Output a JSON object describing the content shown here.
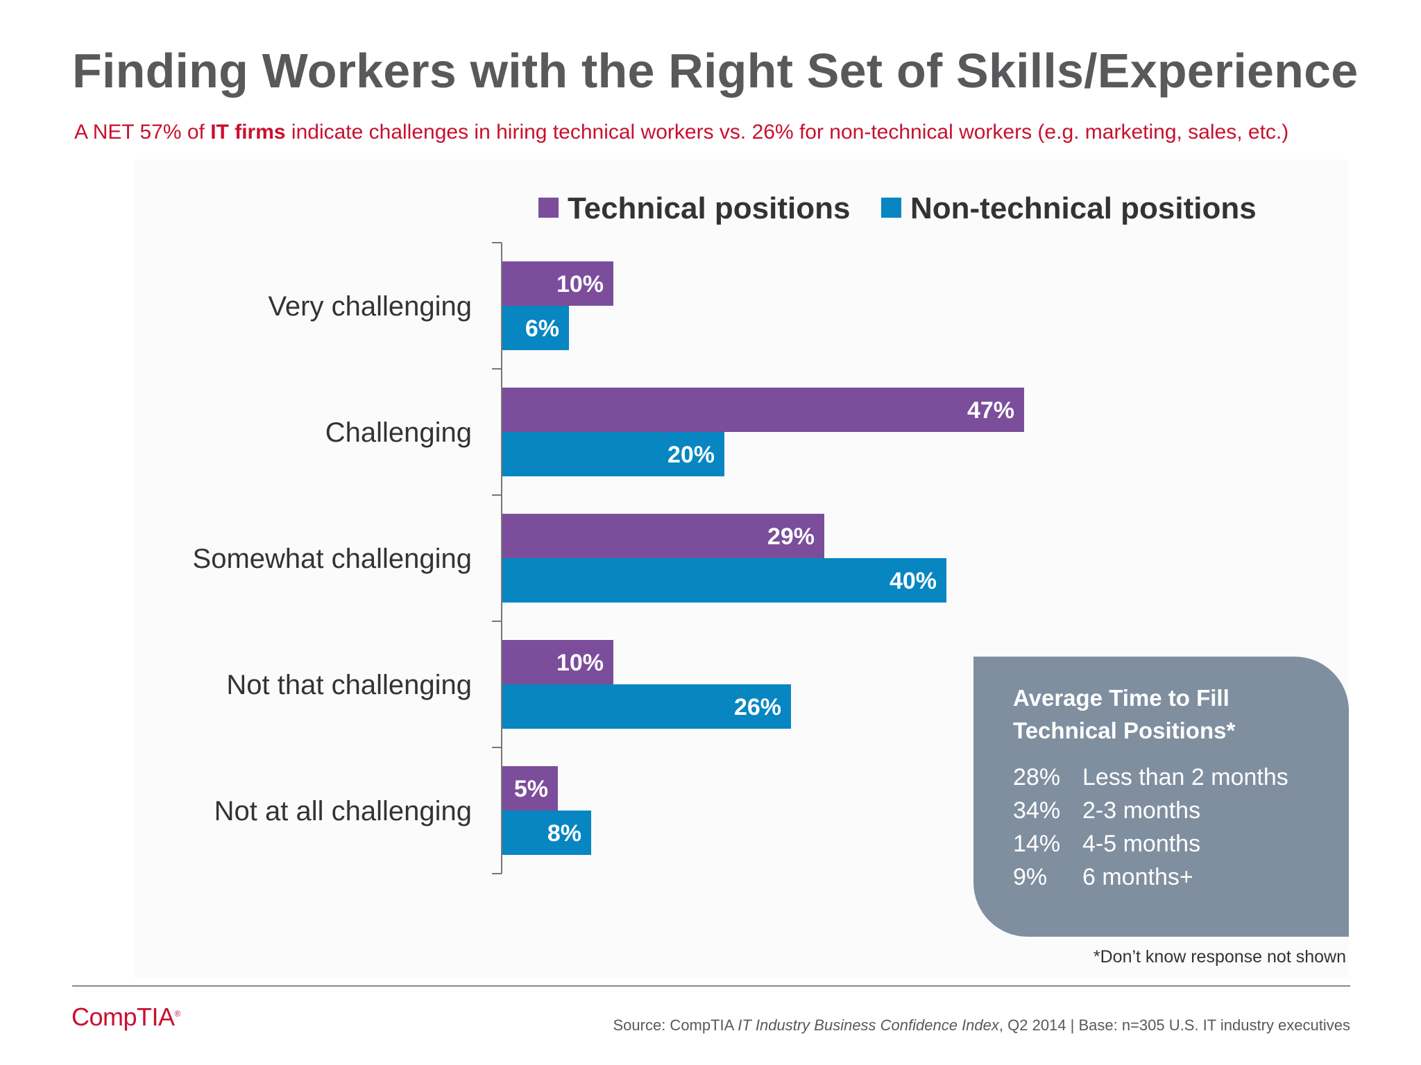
{
  "header": {
    "title": "Finding Workers with the Right Set of Skills/Experience",
    "subtitle_pre": "A NET 57% of ",
    "subtitle_bold": "IT firms",
    "subtitle_post": " indicate challenges in hiring technical workers vs. 26% for non-technical workers (e.g. marketing, sales, etc.)"
  },
  "chart_data": {
    "type": "bar",
    "orientation": "horizontal",
    "categories": [
      "Very challenging",
      "Challenging",
      "Somewhat challenging",
      "Not that challenging",
      "Not at all challenging"
    ],
    "series": [
      {
        "name": "Technical positions",
        "values": [
          10,
          47,
          29,
          10,
          5
        ],
        "labels": [
          "10%",
          "47%",
          "29%",
          "10%",
          "5%"
        ]
      },
      {
        "name": "Non-technical positions",
        "values": [
          6,
          20,
          40,
          26,
          8
        ],
        "labels": [
          "6%",
          "20%",
          "40%",
          "26%",
          "8%"
        ]
      }
    ],
    "colors": {
      "Technical positions": "#7b4d9b",
      "Non-technical positions": "#0786c1"
    },
    "legend_position": "top",
    "grid": false,
    "value_unit": "%"
  },
  "callout": {
    "title_line1": "Average Time to Fill",
    "title_line2": "Technical Positions*",
    "rows": [
      {
        "pct": "28%",
        "label": "Less than 2 months"
      },
      {
        "pct": "34%",
        "label": "2-3 months"
      },
      {
        "pct": "14%",
        "label": "4-5 months"
      },
      {
        "pct": "9%",
        "label": "6 months+"
      }
    ]
  },
  "footnote": "*Don’t know response not shown",
  "footer": {
    "logo": "CompTIA",
    "source_pre": "Source: CompTIA ",
    "source_italic": "IT Industry Business Confidence Index",
    "source_post": ", Q2 2014 | Base: n=305 U.S. IT industry executives"
  }
}
